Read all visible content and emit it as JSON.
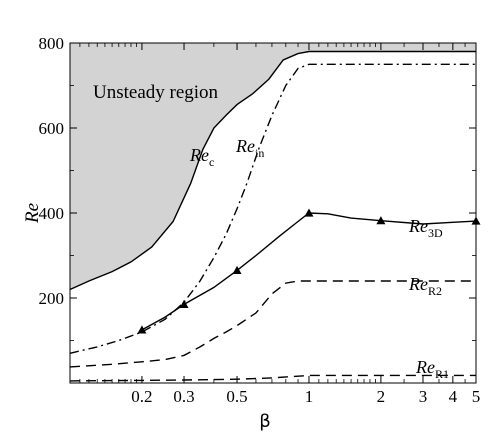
{
  "chart_data": {
    "type": "line",
    "xscale": "log",
    "xlabel": "β",
    "ylabel": "Re",
    "xlim": [
      0.1,
      5
    ],
    "ylim": [
      0,
      800
    ],
    "xticks": [
      {
        "value": 0.2,
        "label": "0.2"
      },
      {
        "value": 0.3,
        "label": "0.3"
      },
      {
        "value": 0.5,
        "label": "0.5"
      },
      {
        "value": 1,
        "label": "1"
      },
      {
        "value": 2,
        "label": "2"
      },
      {
        "value": 3,
        "label": "3"
      },
      {
        "value": 4,
        "label": "4"
      },
      {
        "value": 5,
        "label": "5"
      }
    ],
    "yticks": [
      {
        "value": 200,
        "label": "200"
      },
      {
        "value": 400,
        "label": "400"
      },
      {
        "value": 600,
        "label": "600"
      },
      {
        "value": 800,
        "label": "800"
      }
    ],
    "region_label": "Unsteady region",
    "series": [
      {
        "id": "Rec",
        "label_main": "Re",
        "label_sub": "c",
        "style": "solid",
        "fill_above": true,
        "markers": false,
        "x": [
          0.1,
          0.12,
          0.15,
          0.18,
          0.22,
          0.27,
          0.32,
          0.36,
          0.4,
          0.45,
          0.5,
          0.58,
          0.68,
          0.78,
          0.9,
          1.0,
          1.5,
          2,
          3,
          5
        ],
        "y": [
          220,
          240,
          262,
          285,
          320,
          380,
          470,
          550,
          600,
          630,
          655,
          680,
          715,
          760,
          775,
          780,
          780,
          780,
          780,
          780
        ]
      },
      {
        "id": "Rein",
        "label_main": "Re",
        "label_sub": "in",
        "style": "dashdot",
        "markers": false,
        "x": [
          0.1,
          0.13,
          0.16,
          0.2,
          0.25,
          0.3,
          0.35,
          0.4,
          0.45,
          0.5,
          0.55,
          0.62,
          0.7,
          0.8,
          0.9,
          1.0,
          1.5,
          2,
          3,
          5
        ],
        "y": [
          70,
          85,
          100,
          120,
          150,
          190,
          240,
          295,
          350,
          410,
          470,
          555,
          630,
          700,
          740,
          750,
          750,
          750,
          750,
          750
        ]
      },
      {
        "id": "Re3D",
        "label_main": "Re",
        "label_sub": "3D",
        "style": "solid",
        "markers": true,
        "x": [
          0.2,
          0.25,
          0.3,
          0.4,
          0.5,
          0.6,
          0.75,
          0.9,
          1.0,
          1.2,
          1.5,
          2.0,
          3.0,
          4.0,
          5.0
        ],
        "y": [
          125,
          155,
          185,
          225,
          265,
          300,
          345,
          380,
          400,
          398,
          388,
          382,
          374,
          378,
          381
        ],
        "marker_x": [
          0.2,
          0.3,
          0.5,
          1.0,
          2.0,
          5.0
        ],
        "marker_y": [
          125,
          185,
          265,
          400,
          382,
          381
        ]
      },
      {
        "id": "ReR2",
        "label_main": "Re",
        "label_sub": "R2",
        "style": "dashed",
        "markers": false,
        "x": [
          0.1,
          0.15,
          0.2,
          0.25,
          0.3,
          0.35,
          0.4,
          0.45,
          0.5,
          0.6,
          0.7,
          0.8,
          0.9,
          1.0,
          1.5,
          2,
          3,
          5
        ],
        "y": [
          38,
          44,
          50,
          55,
          65,
          85,
          105,
          120,
          135,
          165,
          210,
          235,
          240,
          240,
          240,
          240,
          240,
          240
        ]
      },
      {
        "id": "ReR1",
        "label_main": "Re",
        "label_sub": "R1",
        "style": "dashed",
        "markers": false,
        "x": [
          0.1,
          0.2,
          0.3,
          0.5,
          0.7,
          0.9,
          1.0,
          1.5,
          2,
          3,
          5
        ],
        "y": [
          5,
          6,
          7,
          9,
          12,
          16,
          18,
          18,
          18,
          18,
          18
        ]
      }
    ]
  }
}
